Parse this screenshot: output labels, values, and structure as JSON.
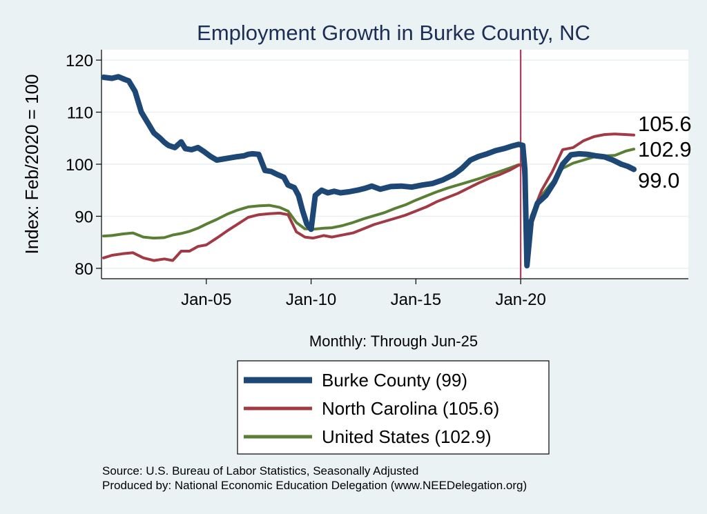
{
  "chart_data": {
    "type": "line",
    "title": "Employment Growth in Burke  County, NC",
    "ylabel": "Index: Feb/2020 = 100",
    "xlabel": "Monthly: Through Jun-25",
    "ylim": [
      78,
      122
    ],
    "xlim": [
      2000.0,
      2028.0
    ],
    "yticks": [
      80,
      90,
      100,
      110,
      120
    ],
    "xticks": [
      {
        "label": "Jan-05",
        "value": 2005.0
      },
      {
        "label": "Jan-10",
        "value": 2010.0
      },
      {
        "label": "Jan-15",
        "value": 2015.0
      },
      {
        "label": "Jan-20",
        "value": 2020.0
      }
    ],
    "reference_line": {
      "x": 2020.0,
      "color": "#c0254a"
    },
    "grid": true,
    "legend_placement": "bottom",
    "source_lines": [
      "Source: U.S. Bureau of Labor Statistics, Seasonally Adjusted",
      "Produced by: National Economic Education Delegation (www.NEEDelegation.org)"
    ],
    "series": [
      {
        "name": "Burke  County (99)",
        "end_label": "99.0",
        "color": "#1d4774",
        "width": 8,
        "x": [
          2000.1,
          2000.5,
          2000.8,
          2001.1,
          2001.3,
          2001.6,
          2001.9,
          2002.2,
          2002.5,
          2002.8,
          2003.0,
          2003.2,
          2003.5,
          2003.8,
          2004.0,
          2004.3,
          2004.6,
          2004.9,
          2005.2,
          2005.5,
          2005.8,
          2006.1,
          2006.4,
          2006.8,
          2007.0,
          2007.2,
          2007.5,
          2007.8,
          2008.1,
          2008.4,
          2008.7,
          2008.9,
          2009.2,
          2009.4,
          2009.6,
          2009.8,
          2009.9,
          2010.0,
          2010.2,
          2010.5,
          2010.8,
          2011.1,
          2011.4,
          2011.8,
          2012.2,
          2012.6,
          2012.9,
          2013.3,
          2013.8,
          2014.3,
          2014.8,
          2015.3,
          2015.8,
          2016.3,
          2016.8,
          2017.2,
          2017.6,
          2018.0,
          2018.4,
          2018.8,
          2019.2,
          2019.6,
          2019.9,
          2020.1,
          2020.2,
          2020.3,
          2020.5,
          2020.8,
          2021.2,
          2021.6,
          2022.0,
          2022.4,
          2022.8,
          2023.2,
          2023.6,
          2024.0,
          2024.4,
          2024.8,
          2025.1,
          2025.4
        ],
        "values": [
          116.7,
          116.5,
          116.8,
          116.3,
          116.0,
          114.0,
          110.0,
          108.0,
          106.0,
          105.0,
          104.2,
          103.6,
          103.2,
          104.3,
          103.0,
          102.8,
          103.2,
          102.4,
          101.5,
          100.8,
          101.0,
          101.2,
          101.4,
          101.6,
          101.9,
          102.0,
          101.9,
          98.8,
          98.6,
          98.0,
          97.5,
          96.0,
          95.5,
          94.0,
          91.0,
          88.5,
          88.0,
          87.5,
          94.0,
          95.0,
          94.5,
          94.8,
          94.5,
          94.7,
          95.0,
          95.4,
          95.8,
          95.2,
          95.7,
          95.8,
          95.6,
          96.0,
          96.3,
          97.0,
          98.0,
          99.2,
          100.8,
          101.5,
          102.0,
          102.6,
          103.0,
          103.5,
          103.8,
          103.6,
          99.0,
          80.5,
          89.0,
          92.5,
          94.0,
          96.5,
          100.0,
          101.8,
          102.0,
          101.9,
          101.6,
          101.4,
          100.8,
          100.0,
          99.6,
          99.0
        ]
      },
      {
        "name": "North Carolina (105.6)",
        "end_label": "105.6",
        "color": "#a23a45",
        "width": 4,
        "x": [
          2000.1,
          2000.5,
          2001.0,
          2001.5,
          2002.0,
          2002.5,
          2003.0,
          2003.4,
          2003.8,
          2004.2,
          2004.6,
          2005.0,
          2005.5,
          2006.0,
          2006.5,
          2007.0,
          2007.5,
          2008.0,
          2008.5,
          2008.9,
          2009.3,
          2009.7,
          2010.1,
          2010.6,
          2011.0,
          2011.5,
          2012.0,
          2012.5,
          2013.0,
          2013.5,
          2014.0,
          2014.5,
          2015.0,
          2015.5,
          2016.0,
          2016.5,
          2017.0,
          2017.5,
          2018.0,
          2018.5,
          2019.0,
          2019.5,
          2019.9,
          2020.1,
          2020.2,
          2020.3,
          2020.5,
          2021.0,
          2021.5,
          2022.0,
          2022.5,
          2023.0,
          2023.5,
          2024.0,
          2024.5,
          2025.0,
          2025.4
        ],
        "values": [
          82.0,
          82.5,
          82.8,
          83.0,
          82.0,
          81.5,
          81.8,
          81.5,
          83.3,
          83.3,
          84.2,
          84.5,
          85.8,
          87.2,
          88.5,
          89.8,
          90.3,
          90.5,
          90.6,
          90.3,
          87.0,
          86.0,
          85.8,
          86.3,
          86.0,
          86.4,
          86.8,
          87.6,
          88.4,
          89.0,
          89.6,
          90.2,
          91.0,
          91.8,
          92.8,
          93.6,
          94.4,
          95.4,
          96.4,
          97.3,
          98.0,
          98.9,
          99.8,
          99.9,
          95.0,
          82.0,
          90.0,
          95.0,
          98.5,
          102.8,
          103.2,
          104.5,
          105.3,
          105.7,
          105.8,
          105.7,
          105.6
        ]
      },
      {
        "name": "United States (102.9)",
        "end_label": "102.9",
        "color": "#5a7f34",
        "width": 4,
        "x": [
          2000.1,
          2000.5,
          2001.0,
          2001.5,
          2002.0,
          2002.5,
          2003.0,
          2003.4,
          2003.8,
          2004.2,
          2004.6,
          2005.0,
          2005.5,
          2006.0,
          2006.5,
          2007.0,
          2007.5,
          2008.0,
          2008.5,
          2008.9,
          2009.3,
          2009.7,
          2010.1,
          2010.6,
          2011.0,
          2011.5,
          2012.0,
          2012.5,
          2013.0,
          2013.5,
          2014.0,
          2014.5,
          2015.0,
          2015.5,
          2016.0,
          2016.5,
          2017.0,
          2017.5,
          2018.0,
          2018.5,
          2019.0,
          2019.5,
          2019.9,
          2020.1,
          2020.2,
          2020.3,
          2020.5,
          2021.0,
          2021.5,
          2022.0,
          2022.5,
          2023.0,
          2023.5,
          2024.0,
          2024.5,
          2025.0,
          2025.4
        ],
        "values": [
          86.2,
          86.3,
          86.6,
          86.8,
          86.0,
          85.8,
          85.9,
          86.4,
          86.7,
          87.1,
          87.7,
          88.5,
          89.4,
          90.4,
          91.2,
          91.8,
          92.0,
          92.1,
          91.7,
          91.0,
          88.8,
          87.6,
          87.5,
          87.7,
          87.8,
          88.2,
          88.8,
          89.5,
          90.1,
          90.7,
          91.5,
          92.2,
          93.1,
          93.9,
          94.7,
          95.4,
          96.0,
          96.6,
          97.2,
          97.9,
          98.6,
          99.3,
          99.9,
          100.0,
          97.5,
          85.8,
          89.5,
          94.0,
          96.5,
          99.2,
          100.2,
          100.8,
          101.4,
          101.6,
          101.7,
          102.5,
          102.9
        ]
      }
    ]
  }
}
